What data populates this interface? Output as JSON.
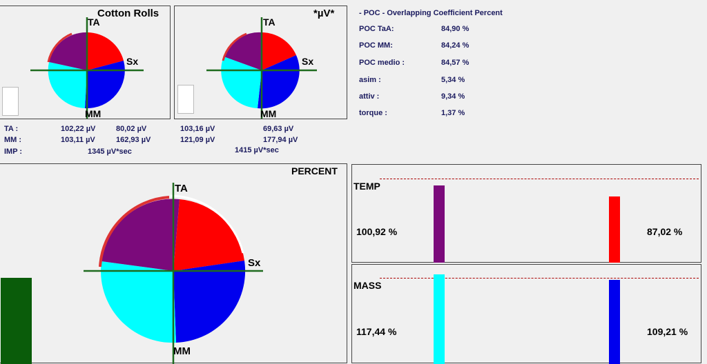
{
  "mini_charts": [
    {
      "title": "Cotton Rolls",
      "ta": "TA",
      "sx": "Sx",
      "mm": "MM"
    },
    {
      "title": "*µV*",
      "ta": "TA",
      "sx": "Sx",
      "mm": "MM"
    }
  ],
  "stats": {
    "ta_label": "TA :",
    "mm_label": "MM :",
    "imp_label": "IMP :",
    "left": {
      "ta_a": "102,22 µV",
      "ta_b": "80,02 µV",
      "mm_a": "103,11 µV",
      "mm_b": "162,93 µV",
      "imp": "1345 µV*sec"
    },
    "right": {
      "ta_a": "103,16 µV",
      "ta_b": "69,63 µV",
      "mm_a": "121,09 µV",
      "mm_b": "177,94 µV",
      "imp": "1415 µV*sec"
    }
  },
  "poc": {
    "heading": "- POC - Overlapping Coefficient Percent",
    "rows": [
      {
        "label": "POC TaA:",
        "value": "84,90 %"
      },
      {
        "label": "POC MM:",
        "value": "84,24 %"
      },
      {
        "label": "POC medio :",
        "value": "84,57 %"
      },
      {
        "label": "asim :",
        "value": "5,34 %"
      },
      {
        "label": "attiv :",
        "value": "9,34 %"
      },
      {
        "label": "torque :",
        "value": "1,37 %"
      }
    ]
  },
  "percent_chart": {
    "title": "PERCENT",
    "ta": "TA",
    "sx": "Sx",
    "mm": "MM"
  },
  "temp": {
    "label": "TEMP",
    "left_value": "100,92 %",
    "right_value": "87,02 %",
    "left_color": "#7b0a7b",
    "right_color": "#ff0000"
  },
  "mass": {
    "label": "MASS",
    "left_value": "117,44 %",
    "right_value": "109,21 %",
    "left_color": "#00ffff",
    "right_color": "#0000ee"
  },
  "colors": {
    "purple": "#7b0a7b",
    "red": "#ff0000",
    "cyan": "#00ffff",
    "blue": "#0000ee",
    "axis": "#1e6b1e",
    "dark_green_bar": "#0a5c0a"
  }
}
